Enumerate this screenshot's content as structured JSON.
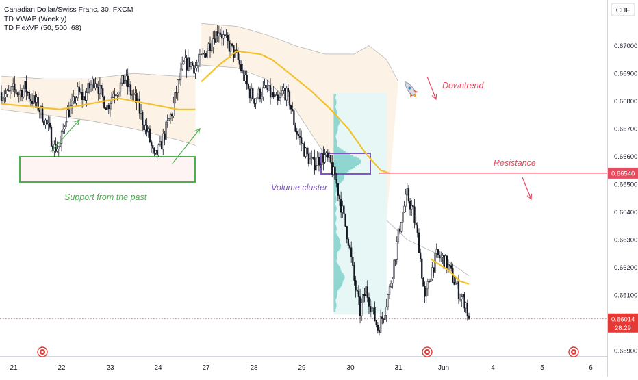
{
  "legend": {
    "symbol": "Canadian Dollar/Swiss Franc, 30, FXCM",
    "vwap": "TD VWAP (Weekly)",
    "flexvp": "TD FlexVP (50, 500, 68)"
  },
  "currency_label": "CHF",
  "colors": {
    "candle": "#131722",
    "vwap": "#f2c12e",
    "band": "#bdbdbd",
    "band_fill": "#fdf2e6",
    "volume_profile": "#8fd6d1",
    "volume_area": "#e6f7f5",
    "support": "#4caf50",
    "cluster": "#7e57c2",
    "resistance": "#e84a5f",
    "price_badge": "#e53935"
  },
  "annotations": {
    "downtrend": "Downtrend",
    "resistance": "Resistance",
    "volume_cluster": "Volume cluster",
    "support": "Support from the past"
  },
  "chart_data": {
    "type": "candlestick",
    "instrument": "Canadian Dollar/Swiss Franc",
    "timeframe": "30",
    "source": "FXCM",
    "x_ticks": [
      "21",
      "22",
      "23",
      "24",
      "27",
      "28",
      "29",
      "30",
      "31",
      "Jun",
      "4",
      "5",
      "6"
    ],
    "y_ticks": [
      "0.67000",
      "0.66900",
      "0.66800",
      "0.66700",
      "0.66600",
      "0.66500",
      "0.66400",
      "0.66300",
      "0.66200",
      "0.66100",
      "0.65900"
    ],
    "ylim": [
      0.6588,
      0.6715
    ],
    "resistance_level": 0.6654,
    "resistance_label": "0.66540",
    "last_price": 0.66014,
    "last_price_label": "0.66014",
    "countdown": "28:29",
    "close_path": [
      [
        0,
        0.6683
      ],
      [
        4,
        0.6682
      ],
      [
        8,
        0.6684
      ],
      [
        12,
        0.6683
      ],
      [
        16,
        0.6685
      ],
      [
        20,
        0.6681
      ],
      [
        24,
        0.6679
      ],
      [
        28,
        0.6675
      ],
      [
        32,
        0.667
      ],
      [
        36,
        0.6663
      ],
      [
        40,
        0.6664
      ],
      [
        44,
        0.6675
      ],
      [
        48,
        0.6678
      ],
      [
        52,
        0.6683
      ],
      [
        56,
        0.6681
      ],
      [
        60,
        0.6685
      ],
      [
        64,
        0.6688
      ],
      [
        68,
        0.6682
      ],
      [
        72,
        0.6678
      ],
      [
        76,
        0.6683
      ],
      [
        80,
        0.6685
      ],
      [
        84,
        0.6688
      ],
      [
        88,
        0.6683
      ],
      [
        92,
        0.668
      ],
      [
        96,
        0.6673
      ],
      [
        100,
        0.6668
      ],
      [
        104,
        0.6659
      ],
      [
        108,
        0.6663
      ],
      [
        112,
        0.667
      ],
      [
        116,
        0.6676
      ],
      [
        120,
        0.6686
      ],
      [
        124,
        0.6693
      ],
      [
        128,
        0.6694
      ],
      [
        132,
        0.6692
      ],
      [
        136,
        0.6695
      ],
      [
        140,
        0.6699
      ],
      [
        144,
        0.6703
      ],
      [
        148,
        0.6706
      ],
      [
        152,
        0.6702
      ],
      [
        156,
        0.6699
      ],
      [
        160,
        0.6696
      ],
      [
        164,
        0.669
      ],
      [
        168,
        0.6684
      ],
      [
        172,
        0.6681
      ],
      [
        176,
        0.6683
      ],
      [
        180,
        0.6684
      ],
      [
        184,
        0.6682
      ],
      [
        188,
        0.6679
      ],
      [
        192,
        0.6684
      ],
      [
        196,
        0.668
      ],
      [
        200,
        0.667
      ],
      [
        204,
        0.6665
      ],
      [
        208,
        0.666
      ],
      [
        212,
        0.6657
      ],
      [
        216,
        0.6659
      ],
      [
        220,
        0.666
      ],
      [
        224,
        0.6657
      ],
      [
        228,
        0.665
      ],
      [
        232,
        0.664
      ],
      [
        236,
        0.663
      ],
      [
        240,
        0.6615
      ],
      [
        244,
        0.6604
      ],
      [
        248,
        0.6612
      ],
      [
        252,
        0.6605
      ],
      [
        256,
        0.6598
      ],
      [
        260,
        0.6603
      ],
      [
        264,
        0.6612
      ],
      [
        268,
        0.6625
      ],
      [
        272,
        0.6638
      ],
      [
        276,
        0.6646
      ],
      [
        280,
        0.664
      ],
      [
        284,
        0.6628
      ],
      [
        288,
        0.6608
      ],
      [
        292,
        0.6618
      ],
      [
        296,
        0.6624
      ],
      [
        300,
        0.6623
      ],
      [
        304,
        0.662
      ],
      [
        308,
        0.6615
      ],
      [
        312,
        0.661
      ],
      [
        316,
        0.6607
      ],
      [
        318,
        0.6601
      ]
    ],
    "vwap_path": [
      [
        0,
        0.6679
      ],
      [
        20,
        0.6678
      ],
      [
        40,
        0.6677
      ],
      [
        60,
        0.6679
      ],
      [
        80,
        0.6681
      ],
      [
        100,
        0.6679
      ],
      [
        120,
        0.6677
      ],
      [
        132,
        0.6677
      ],
      [
        136,
        0.6687
      ],
      [
        148,
        0.6693
      ],
      [
        160,
        0.6698
      ],
      [
        176,
        0.6697
      ],
      [
        184,
        0.6695
      ],
      [
        196,
        0.669
      ],
      [
        210,
        0.6684
      ],
      [
        224,
        0.6677
      ],
      [
        236,
        0.667
      ],
      [
        248,
        0.6661
      ],
      [
        258,
        0.6655
      ],
      [
        264,
        0.6654
      ]
    ],
    "vwap_path_2": [
      [
        292,
        0.6623
      ],
      [
        304,
        0.6619
      ],
      [
        312,
        0.6615
      ],
      [
        318,
        0.6614
      ]
    ],
    "upper_band": [
      [
        0,
        0.6689
      ],
      [
        30,
        0.6688
      ],
      [
        60,
        0.6688
      ],
      [
        90,
        0.669
      ],
      [
        120,
        0.6689
      ],
      [
        132,
        0.6689
      ],
      [
        136,
        0.6708
      ],
      [
        160,
        0.6707
      ],
      [
        180,
        0.6704
      ],
      [
        200,
        0.67
      ],
      [
        220,
        0.6697
      ],
      [
        240,
        0.6697
      ],
      [
        250,
        0.67
      ],
      [
        262,
        0.6695
      ],
      [
        270,
        0.6687
      ]
    ],
    "lower_band": [
      [
        0,
        0.6677
      ],
      [
        30,
        0.6675
      ],
      [
        60,
        0.6673
      ],
      [
        90,
        0.667
      ],
      [
        120,
        0.6666
      ],
      [
        132,
        0.6664
      ],
      [
        136,
        0.6693
      ],
      [
        160,
        0.6692
      ],
      [
        180,
        0.6688
      ],
      [
        200,
        0.6677
      ],
      [
        216,
        0.6664
      ],
      [
        236,
        0.6648
      ],
      [
        252,
        0.6642
      ],
      [
        262,
        0.6637
      ],
      [
        276,
        0.663
      ],
      [
        296,
        0.6625
      ],
      [
        318,
        0.6617
      ]
    ]
  }
}
